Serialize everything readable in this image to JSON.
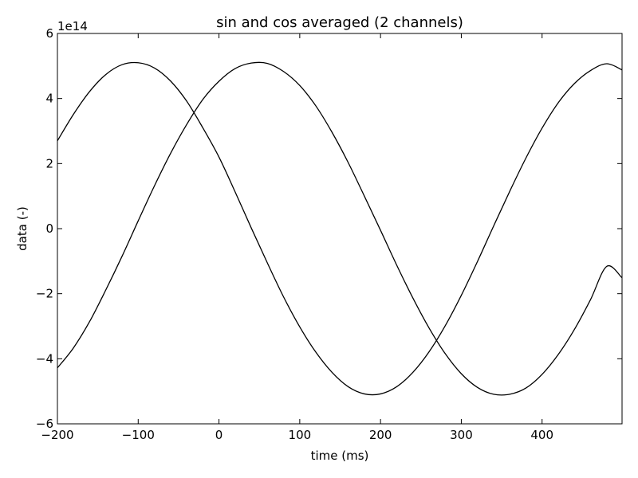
{
  "chart_data": {
    "type": "line",
    "title": "sin and cos averaged (2 channels)",
    "xlabel": "time (ms)",
    "ylabel": "data (-)",
    "y_offset_label": "1e14",
    "y_scale": 100000000000000.0,
    "xlim": [
      -200,
      499
    ],
    "ylim": [
      -6,
      6
    ],
    "grid": false,
    "x_ticks": [
      -200,
      -100,
      0,
      100,
      200,
      300,
      400
    ],
    "x_tick_labels": [
      "−200",
      "−100",
      "0",
      "100",
      "200",
      "300",
      "400"
    ],
    "y_ticks": [
      -6,
      -4,
      -2,
      0,
      2,
      4,
      6
    ],
    "y_tick_labels": [
      "−6",
      "−4",
      "−2",
      "0",
      "2",
      "4",
      "6"
    ],
    "line_color": "#000000",
    "series": [
      {
        "x": [
          -200,
          -180,
          -160,
          -140,
          -120,
          -100,
          -80,
          -60,
          -40,
          -20,
          0,
          20,
          40,
          60,
          80,
          100,
          120,
          140,
          160,
          180,
          200,
          220,
          240,
          260,
          280,
          300,
          320,
          340,
          360,
          380,
          400,
          420,
          440,
          460,
          480,
          499
        ],
        "y": [
          -4.28,
          -3.66,
          -2.85,
          -1.88,
          -0.85,
          0.24,
          1.31,
          2.31,
          3.2,
          3.97,
          4.53,
          4.92,
          5.09,
          5.08,
          4.83,
          4.4,
          3.77,
          2.96,
          2.03,
          1.0,
          -0.05,
          -1.12,
          -2.13,
          -3.05,
          -3.84,
          -4.46,
          -4.88,
          -5.09,
          -5.09,
          -4.9,
          -4.48,
          -3.87,
          -3.1,
          -2.18,
          -1.16,
          -1.51
        ]
      },
      {
        "x": [
          -200,
          -180,
          -160,
          -140,
          -120,
          -100,
          -80,
          -60,
          -40,
          -20,
          0,
          20,
          40,
          60,
          80,
          100,
          120,
          140,
          160,
          180,
          200,
          220,
          240,
          260,
          280,
          300,
          320,
          340,
          360,
          380,
          400,
          420,
          440,
          460,
          480,
          499
        ],
        "y": [
          2.7,
          3.52,
          4.22,
          4.74,
          5.04,
          5.1,
          4.94,
          4.54,
          3.92,
          3.1,
          2.2,
          1.13,
          0.02,
          -1.06,
          -2.1,
          -3.02,
          -3.8,
          -4.42,
          -4.86,
          -5.08,
          -5.08,
          -4.86,
          -4.42,
          -3.79,
          -2.99,
          -2.05,
          -1.01,
          0.08,
          1.15,
          2.17,
          3.09,
          3.87,
          4.46,
          4.86,
          5.07,
          4.88
        ]
      }
    ]
  }
}
